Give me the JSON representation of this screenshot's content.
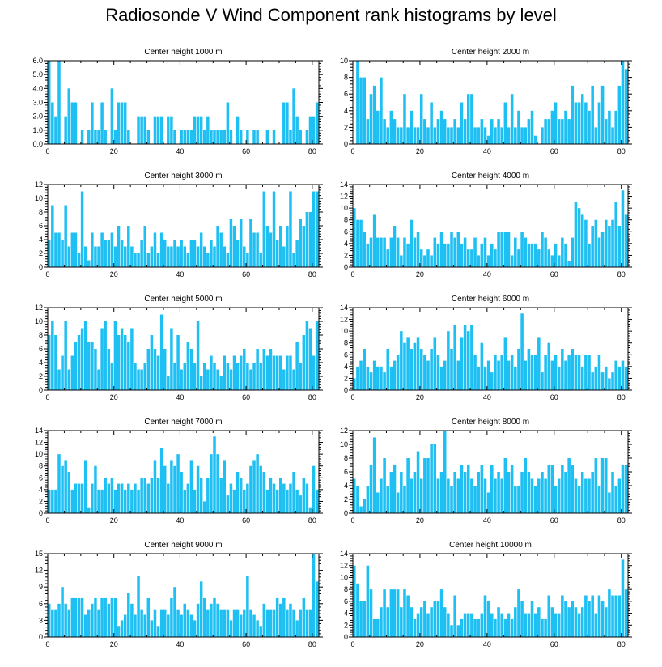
{
  "title": "Radiosonde V Wind Component rank histograms by level",
  "colors": {
    "bar": "#1EBFF3",
    "bar_edge": "#ffffff",
    "axis": "#000000"
  },
  "chart_data": [
    {
      "type": "bar",
      "title": "Center height 1000 m",
      "xlim": [
        0,
        82
      ],
      "ylim": [
        0,
        6
      ],
      "xticks": [
        0,
        20,
        40,
        60,
        80
      ],
      "yticks": [
        0,
        1,
        2,
        3,
        4,
        5,
        6
      ],
      "yfmt": 1,
      "values": [
        6,
        3,
        2,
        6,
        0,
        2,
        4,
        3,
        3,
        0,
        1,
        0,
        1,
        3,
        1,
        1,
        3,
        1,
        0,
        4,
        1,
        3,
        3,
        3,
        1,
        0,
        0,
        2,
        2,
        2,
        1,
        0,
        2,
        2,
        2,
        0,
        2,
        2,
        1,
        0,
        1,
        1,
        1,
        1,
        2,
        2,
        2,
        1,
        2,
        1,
        1,
        1,
        1,
        1,
        3,
        1,
        0,
        2,
        1,
        0,
        1,
        0,
        1,
        1,
        0,
        0,
        1,
        0,
        1,
        0,
        0,
        3,
        3,
        1,
        4,
        2,
        1,
        0,
        1,
        2,
        2,
        3
      ]
    },
    {
      "type": "bar",
      "title": "Center height 2000 m",
      "xlim": [
        0,
        82
      ],
      "ylim": [
        0,
        10
      ],
      "xticks": [
        0,
        20,
        40,
        60,
        80
      ],
      "yticks": [
        0,
        2,
        4,
        6,
        8,
        10
      ],
      "yfmt": 0,
      "values": [
        0,
        10,
        8,
        8,
        3,
        6,
        7,
        4,
        8,
        3,
        2,
        4,
        3,
        2,
        2,
        6,
        2,
        4,
        2,
        2,
        6,
        3,
        2,
        5,
        2,
        3,
        4,
        3,
        2,
        2,
        3,
        2,
        5,
        3,
        6,
        6,
        2,
        2,
        3,
        2,
        1,
        3,
        2,
        3,
        2,
        5,
        2,
        6,
        2,
        4,
        2,
        2,
        3,
        4,
        1,
        0,
        2,
        3,
        3,
        4,
        5,
        3,
        3,
        4,
        3,
        7,
        5,
        5,
        6,
        5,
        4,
        7,
        2,
        5,
        7,
        3,
        4,
        2,
        4,
        7,
        10,
        9
      ]
    },
    {
      "type": "bar",
      "title": "Center height 3000 m",
      "xlim": [
        0,
        82
      ],
      "ylim": [
        0,
        12
      ],
      "xticks": [
        0,
        20,
        40,
        60,
        80
      ],
      "yticks": [
        0,
        2,
        4,
        6,
        8,
        10,
        12
      ],
      "yfmt": 0,
      "values": [
        4,
        9,
        5,
        5,
        4,
        9,
        3,
        5,
        5,
        2,
        11,
        3,
        1,
        5,
        3,
        3,
        5,
        4,
        4,
        5,
        3,
        6,
        4,
        3,
        6,
        3,
        2,
        2,
        4,
        6,
        2,
        3,
        5,
        2,
        5,
        4,
        3,
        3,
        4,
        3,
        4,
        3,
        2,
        4,
        4,
        3,
        5,
        3,
        2,
        4,
        3,
        6,
        5,
        3,
        2,
        7,
        6,
        4,
        7,
        3,
        2,
        7,
        5,
        5,
        2,
        11,
        6,
        5,
        11,
        4,
        6,
        3,
        6,
        11,
        2,
        4,
        7,
        6,
        8,
        8,
        11,
        11
      ]
    },
    {
      "type": "bar",
      "title": "Center height 4000 m",
      "xlim": [
        0,
        82
      ],
      "ylim": [
        0,
        14
      ],
      "xticks": [
        0,
        20,
        40,
        60,
        80
      ],
      "yticks": [
        0,
        2,
        4,
        6,
        8,
        10,
        12,
        14
      ],
      "yfmt": 0,
      "values": [
        10,
        8,
        8,
        6,
        4,
        5,
        9,
        5,
        5,
        5,
        3,
        5,
        7,
        5,
        2,
        5,
        4,
        8,
        5,
        6,
        3,
        2,
        3,
        2,
        5,
        4,
        6,
        4,
        4,
        6,
        5,
        6,
        4,
        5,
        3,
        3,
        5,
        2,
        4,
        5,
        2,
        4,
        3,
        6,
        6,
        6,
        6,
        2,
        5,
        3,
        6,
        5,
        4,
        4,
        4,
        3,
        6,
        5,
        3,
        2,
        4,
        2,
        5,
        4,
        1,
        5,
        11,
        10,
        9,
        8,
        4,
        7,
        8,
        5,
        6,
        8,
        7,
        8,
        11,
        7,
        13,
        9
      ]
    },
    {
      "type": "bar",
      "title": "Center height 5000 m",
      "xlim": [
        0,
        82
      ],
      "ylim": [
        0,
        12
      ],
      "xticks": [
        0,
        20,
        40,
        60,
        80
      ],
      "yticks": [
        0,
        2,
        4,
        6,
        8,
        10,
        12
      ],
      "yfmt": 0,
      "values": [
        8,
        10,
        8,
        3,
        5,
        10,
        3,
        5,
        7,
        8,
        9,
        10,
        7,
        7,
        6,
        3,
        9,
        10,
        6,
        4,
        10,
        8,
        9,
        8,
        7,
        9,
        4,
        3,
        3,
        4,
        6,
        8,
        6,
        5,
        11,
        6,
        2,
        9,
        4,
        8,
        3,
        4,
        7,
        6,
        4,
        10,
        2,
        4,
        3,
        5,
        4,
        3,
        2,
        5,
        4,
        3,
        5,
        4,
        5,
        6,
        4,
        3,
        4,
        6,
        4,
        6,
        5,
        6,
        5,
        5,
        5,
        3,
        5,
        5,
        3,
        7,
        4,
        8,
        10,
        9,
        5,
        10
      ]
    },
    {
      "type": "bar",
      "title": "Center height 6000 m",
      "xlim": [
        0,
        82
      ],
      "ylim": [
        0,
        14
      ],
      "xticks": [
        0,
        20,
        40,
        60,
        80
      ],
      "yticks": [
        0,
        2,
        4,
        6,
        8,
        10,
        12,
        14
      ],
      "yfmt": 0,
      "values": [
        2,
        4,
        5,
        7,
        4,
        3,
        5,
        4,
        4,
        3,
        7,
        4,
        5,
        6,
        10,
        8,
        9,
        7,
        8,
        9,
        7,
        6,
        5,
        7,
        9,
        6,
        4,
        5,
        10,
        7,
        11,
        5,
        9,
        11,
        10,
        11,
        6,
        4,
        8,
        4,
        5,
        3,
        6,
        5,
        6,
        9,
        5,
        6,
        4,
        7,
        13,
        5,
        7,
        6,
        6,
        9,
        3,
        6,
        8,
        5,
        6,
        4,
        7,
        5,
        6,
        7,
        6,
        6,
        4,
        6,
        6,
        3,
        4,
        6,
        3,
        4,
        2,
        3,
        5,
        4,
        5,
        4
      ]
    },
    {
      "type": "bar",
      "title": "Center height 7000 m",
      "xlim": [
        0,
        82
      ],
      "ylim": [
        0,
        14
      ],
      "xticks": [
        0,
        20,
        40,
        60,
        80
      ],
      "yticks": [
        0,
        2,
        4,
        6,
        8,
        10,
        12,
        14
      ],
      "yfmt": 0,
      "values": [
        4,
        4,
        4,
        10,
        8,
        9,
        7,
        4,
        5,
        5,
        5,
        9,
        1,
        5,
        8,
        4,
        4,
        6,
        5,
        6,
        4,
        5,
        5,
        4,
        5,
        4,
        5,
        4,
        6,
        6,
        5,
        6,
        9,
        6,
        11,
        8,
        5,
        9,
        8,
        10,
        7,
        4,
        5,
        9,
        4,
        8,
        6,
        2,
        6,
        10,
        13,
        10,
        6,
        9,
        3,
        5,
        4,
        7,
        6,
        4,
        5,
        8,
        9,
        10,
        8,
        7,
        4,
        6,
        5,
        4,
        6,
        5,
        4,
        5,
        7,
        4,
        3,
        6,
        5,
        1,
        8,
        4
      ]
    },
    {
      "type": "bar",
      "title": "Center height 8000 m",
      "xlim": [
        0,
        82
      ],
      "ylim": [
        0,
        12
      ],
      "xticks": [
        0,
        20,
        40,
        60,
        80
      ],
      "yticks": [
        0,
        2,
        4,
        6,
        8,
        10,
        12
      ],
      "yfmt": 0,
      "values": [
        5,
        4,
        1,
        2,
        4,
        7,
        11,
        3,
        5,
        8,
        4,
        6,
        7,
        3,
        6,
        4,
        8,
        5,
        6,
        9,
        5,
        8,
        8,
        10,
        10,
        5,
        6,
        12,
        5,
        4,
        6,
        5,
        7,
        6,
        7,
        5,
        4,
        6,
        7,
        5,
        3,
        7,
        5,
        6,
        5,
        8,
        6,
        7,
        4,
        4,
        6,
        8,
        6,
        5,
        4,
        5,
        6,
        5,
        7,
        7,
        4,
        5,
        7,
        6,
        8,
        7,
        5,
        4,
        6,
        5,
        5,
        6,
        8,
        4,
        8,
        8,
        3,
        6,
        4,
        5,
        7,
        7
      ]
    },
    {
      "type": "bar",
      "title": "Center height 9000 m",
      "xlim": [
        0,
        82
      ],
      "ylim": [
        0,
        15
      ],
      "xticks": [
        0,
        20,
        40,
        60,
        80
      ],
      "yticks": [
        0,
        3,
        6,
        9,
        12,
        15
      ],
      "yfmt": 0,
      "values": [
        6,
        5,
        5,
        6,
        9,
        6,
        5,
        7,
        7,
        7,
        7,
        4,
        5,
        6,
        7,
        5,
        7,
        7,
        6,
        7,
        7,
        2,
        3,
        4,
        8,
        6,
        4,
        11,
        5,
        4,
        7,
        3,
        5,
        2,
        5,
        5,
        4,
        7,
        9,
        5,
        4,
        6,
        5,
        4,
        3,
        6,
        10,
        7,
        5,
        6,
        7,
        6,
        5,
        5,
        5,
        3,
        5,
        5,
        4,
        5,
        11,
        5,
        4,
        3,
        2,
        6,
        5,
        5,
        5,
        7,
        6,
        7,
        5,
        6,
        5,
        3,
        5,
        7,
        5,
        5,
        15,
        10
      ]
    },
    {
      "type": "bar",
      "title": "Center height 10000 m",
      "xlim": [
        0,
        82
      ],
      "ylim": [
        0,
        14
      ],
      "xticks": [
        0,
        20,
        40,
        60,
        80
      ],
      "yticks": [
        0,
        2,
        4,
        6,
        8,
        10,
        12,
        14
      ],
      "yfmt": 0,
      "values": [
        12,
        9,
        6,
        6,
        12,
        8,
        3,
        3,
        5,
        8,
        5,
        8,
        8,
        8,
        5,
        8,
        7,
        5,
        3,
        4,
        5,
        6,
        4,
        5,
        6,
        6,
        8,
        5,
        4,
        2,
        7,
        2,
        3,
        4,
        4,
        4,
        3,
        3,
        4,
        7,
        6,
        4,
        3,
        5,
        4,
        3,
        4,
        3,
        5,
        8,
        6,
        4,
        4,
        6,
        4,
        5,
        3,
        3,
        7,
        5,
        4,
        4,
        7,
        6,
        5,
        6,
        5,
        4,
        5,
        7,
        6,
        7,
        4,
        7,
        6,
        5,
        8,
        7,
        7,
        7,
        13,
        8
      ]
    }
  ]
}
